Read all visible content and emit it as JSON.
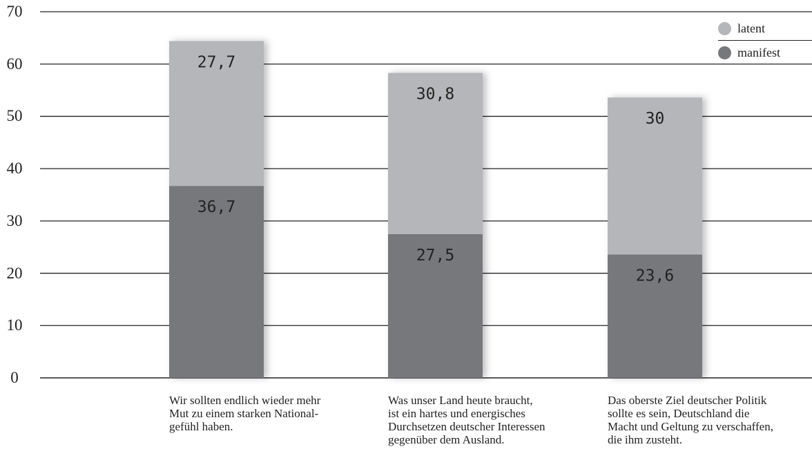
{
  "chart_data": {
    "type": "bar",
    "stacked": true,
    "categories": [
      [
        "Wir sollten endlich wieder mehr",
        "Mut zu einem starken National-",
        "gefühl haben."
      ],
      [
        "Was unser Land heute braucht,",
        "ist ein hartes und energisches",
        "Durchsetzen deutscher Interessen",
        "gegenüber dem Ausland."
      ],
      [
        "Das oberste Ziel deutscher Politik",
        "sollte es sein, Deutschland die",
        "Macht und Geltung zu verschaffen,",
        "die ihm zusteht."
      ]
    ],
    "series": [
      {
        "name": "manifest",
        "values": [
          36.7,
          27.5,
          23.6
        ],
        "labels": [
          "36,7",
          "27,5",
          "23,6"
        ],
        "color": "#77787b"
      },
      {
        "name": "latent",
        "values": [
          27.7,
          30.8,
          30
        ],
        "labels": [
          "27,7",
          "30,8",
          "30"
        ],
        "color": "#b5b6b9"
      }
    ],
    "ylim": [
      0,
      70
    ],
    "yticks": [
      "0",
      "10",
      "20",
      "30",
      "40",
      "50",
      "60",
      "70"
    ],
    "grid": true,
    "legend": {
      "position": "top-right",
      "order": [
        "latent",
        "manifest"
      ]
    },
    "title": "",
    "xlabel": "",
    "ylabel": ""
  }
}
